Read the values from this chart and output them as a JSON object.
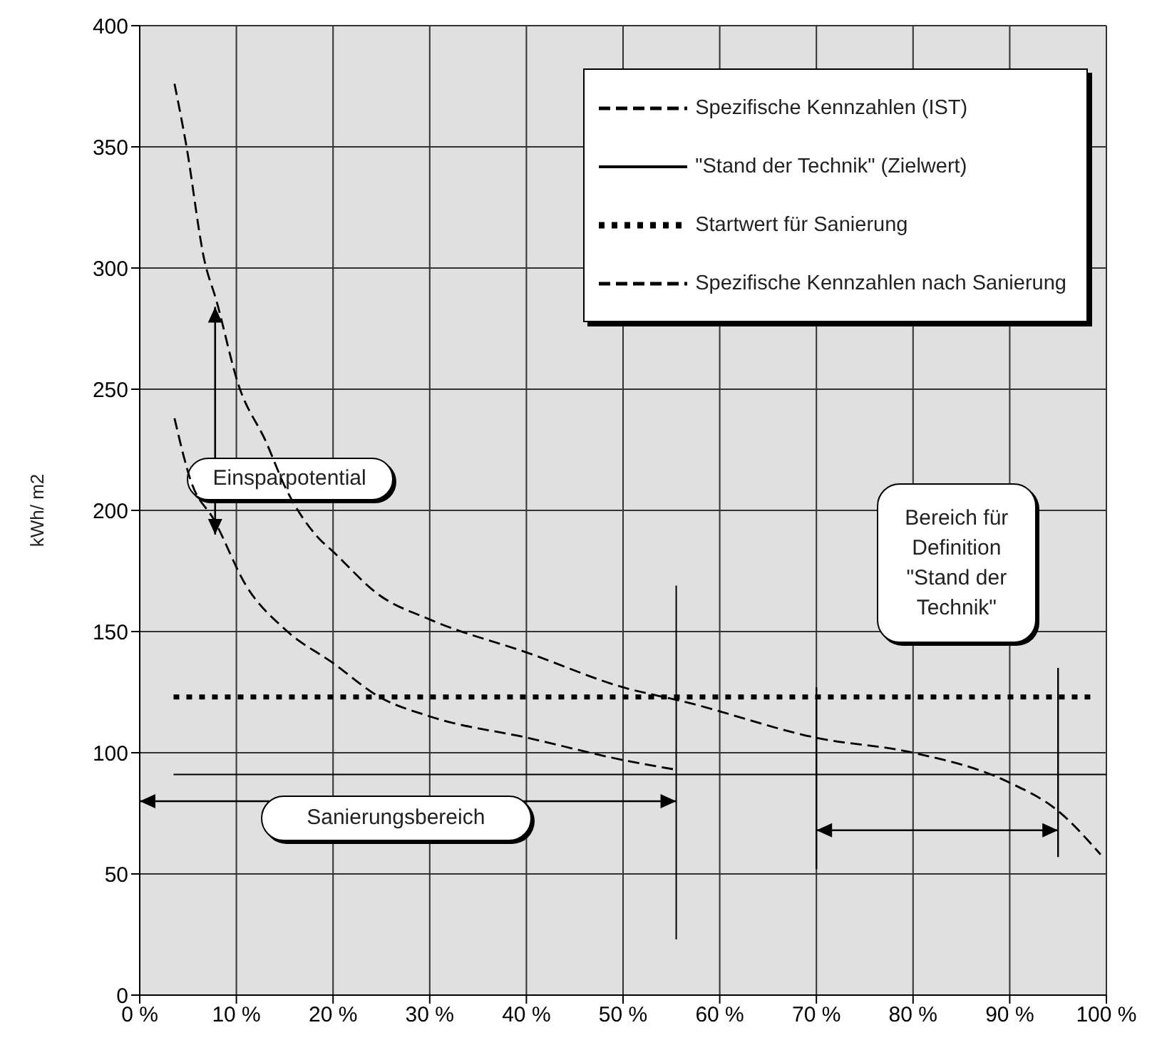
{
  "chart_data": {
    "type": "line",
    "ylabel": "kWh/ m2",
    "xlim": [
      0,
      100
    ],
    "xticks": [
      {
        "value": 0,
        "label": "0 %"
      },
      {
        "value": 10,
        "label": "10 %"
      },
      {
        "value": 20,
        "label": "20 %"
      },
      {
        "value": 30,
        "label": "30 %"
      },
      {
        "value": 40,
        "label": "40 %"
      },
      {
        "value": 50,
        "label": "50 %"
      },
      {
        "value": 60,
        "label": "60 %"
      },
      {
        "value": 70,
        "label": "70 %"
      },
      {
        "value": 80,
        "label": "80 %"
      },
      {
        "value": 90,
        "label": "90 %"
      },
      {
        "value": 100,
        "label": "100 %"
      }
    ],
    "ylim": [
      0,
      400
    ],
    "yticks": [
      0,
      50,
      100,
      150,
      200,
      250,
      300,
      350,
      400
    ],
    "grid": true,
    "legend": "top right",
    "marker": "none",
    "series": [
      {
        "name": "Spezifische Kennzahlen (IST)",
        "color": "#000000",
        "line_style": "dashed",
        "x": [
          3.6,
          4.8,
          6.7,
          7.9,
          10.2,
          13.1,
          15,
          18.4,
          20,
          24.8,
          30,
          40.3,
          50,
          56.4,
          70.2,
          80,
          89.8,
          95,
          99.4
        ],
        "values": [
          376,
          351,
          303,
          287,
          252,
          228,
          210,
          189,
          183,
          165,
          155,
          141,
          127,
          121,
          106,
          100,
          88,
          76,
          58
        ]
      },
      {
        "name": "\"Stand der Technik\" (Zielwert)",
        "color": "#000000",
        "line_style": "solid",
        "x": [
          3.5,
          100
        ],
        "values": [
          91,
          91
        ]
      },
      {
        "name": "Startwert für Sanierung",
        "color": "#000000",
        "line_style": "dotted",
        "x": [
          3.5,
          99
        ],
        "values": [
          123,
          123
        ]
      },
      {
        "name": "Spezifische Kennzahlen nach Sanierung",
        "color": "#000000",
        "line_style": "dashed",
        "x": [
          3.6,
          5.3,
          7.7,
          11,
          15,
          20,
          24.8,
          30,
          40.3,
          50,
          55.5
        ],
        "values": [
          238,
          212,
          196,
          169,
          151,
          137,
          123,
          115,
          106,
          97,
          93
        ]
      }
    ],
    "annotations": [
      "Einsparpotential",
      "Sanierungsbereich",
      "Bereich für Definition \"Stand der Technik\""
    ]
  }
}
